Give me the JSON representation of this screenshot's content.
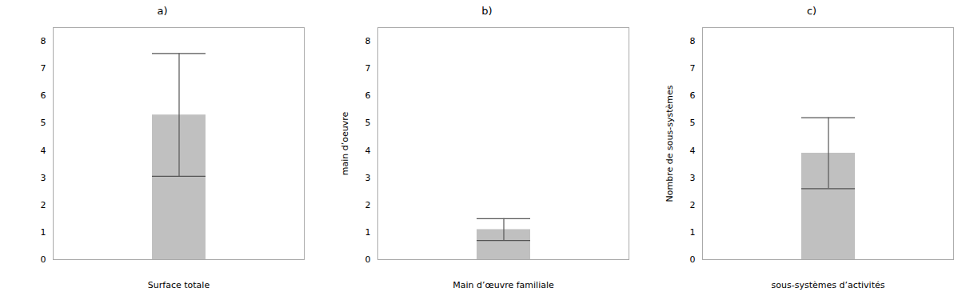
{
  "chart_data": [
    {
      "type": "bar",
      "title": "a)",
      "categories": [
        null
      ],
      "values": [
        5.3
      ],
      "errors": [
        2.25
      ],
      "x_label": "Surface totale",
      "ylim": [
        0,
        8.5
      ],
      "yticks": [
        0,
        1,
        2,
        3,
        4,
        5,
        6,
        7,
        8
      ],
      "color": "#c0c0c0",
      "grid": false,
      "tick_labels": "y"
    },
    {
      "type": "bar",
      "title": "b)",
      "categories": [
        null
      ],
      "values": [
        1.1
      ],
      "errors": [
        0.4
      ],
      "x_label": "Main d’œuvre familiale",
      "y_label": "main d’oeuvre",
      "ylim": [
        0,
        8.5
      ],
      "yticks": [
        0,
        1,
        2,
        3,
        4,
        5,
        6,
        7,
        8
      ],
      "color": "#c0c0c0",
      "grid": false,
      "tick_labels": "y"
    },
    {
      "type": "bar",
      "title": "c)",
      "categories": [
        null
      ],
      "values": [
        3.9
      ],
      "errors": [
        1.3
      ],
      "x_label": "sous-systèmes d’activités",
      "y_label": "Nombre de sous-systèmes",
      "ylim": [
        0,
        8.5
      ],
      "yticks": [
        0,
        1,
        2,
        3,
        4,
        5,
        6,
        7,
        8
      ],
      "color": "#c0c0c0",
      "grid": false,
      "tick_labels": "y"
    }
  ]
}
